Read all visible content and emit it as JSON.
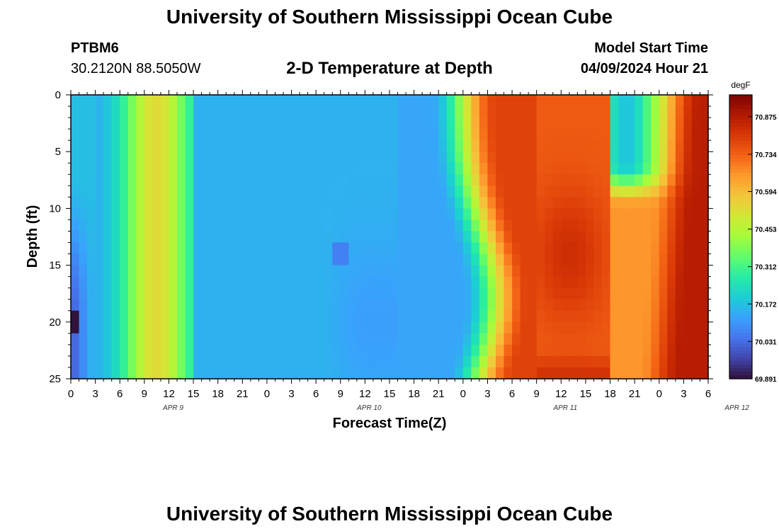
{
  "header": {
    "title": "University of Southern Mississippi Ocean Cube",
    "station": "PTBM6",
    "coords": "30.2120N  88.5050W",
    "subtitle": "2-D Temperature at Depth",
    "model_label": "Model Start Time",
    "model_time": "04/09/2024 Hour 21"
  },
  "footer": {
    "title": "University of Southern Mississippi Ocean Cube"
  },
  "chart_data": {
    "type": "heatmap",
    "title": "2-D Temperature at Depth",
    "xlabel": "Forecast Time(Z)",
    "ylabel": "Depth (ft)",
    "x_ticks": [
      "0",
      "3",
      "6",
      "9",
      "12",
      "15",
      "18",
      "21",
      "0",
      "3",
      "6",
      "9",
      "12",
      "15",
      "18",
      "21",
      "0",
      "3",
      "6",
      "9",
      "12",
      "15",
      "18",
      "21",
      "0",
      "3",
      "6"
    ],
    "x_range_hours": [
      0,
      78
    ],
    "x_date_labels": [
      {
        "label": "APR 9",
        "hour": 12
      },
      {
        "label": "APR 10",
        "hour": 36
      },
      {
        "label": "APR 11",
        "hour": 60
      },
      {
        "label": "APR 12",
        "hour": 81
      }
    ],
    "y_ticks": [
      "0",
      "5",
      "10",
      "15",
      "20",
      "25"
    ],
    "y_range": [
      0,
      25
    ],
    "y_inverted": true,
    "colorbar": {
      "unit": "degF",
      "min": 69.891,
      "max": 70.957,
      "tick_labels": [
        "69.891",
        "70.031",
        "70.172",
        "70.312",
        "70.453",
        "70.594",
        "70.734",
        "70.875"
      ],
      "colors": [
        "#30123b",
        "#4145ab",
        "#4675ed",
        "#39a2fc",
        "#1bcfd4",
        "#24eca6",
        "#61fc6c",
        "#a4fc3b",
        "#d1e834",
        "#f3c63a",
        "#fe9b2d",
        "#f36315",
        "#d93806",
        "#b11901",
        "#7a0402"
      ]
    }
  }
}
